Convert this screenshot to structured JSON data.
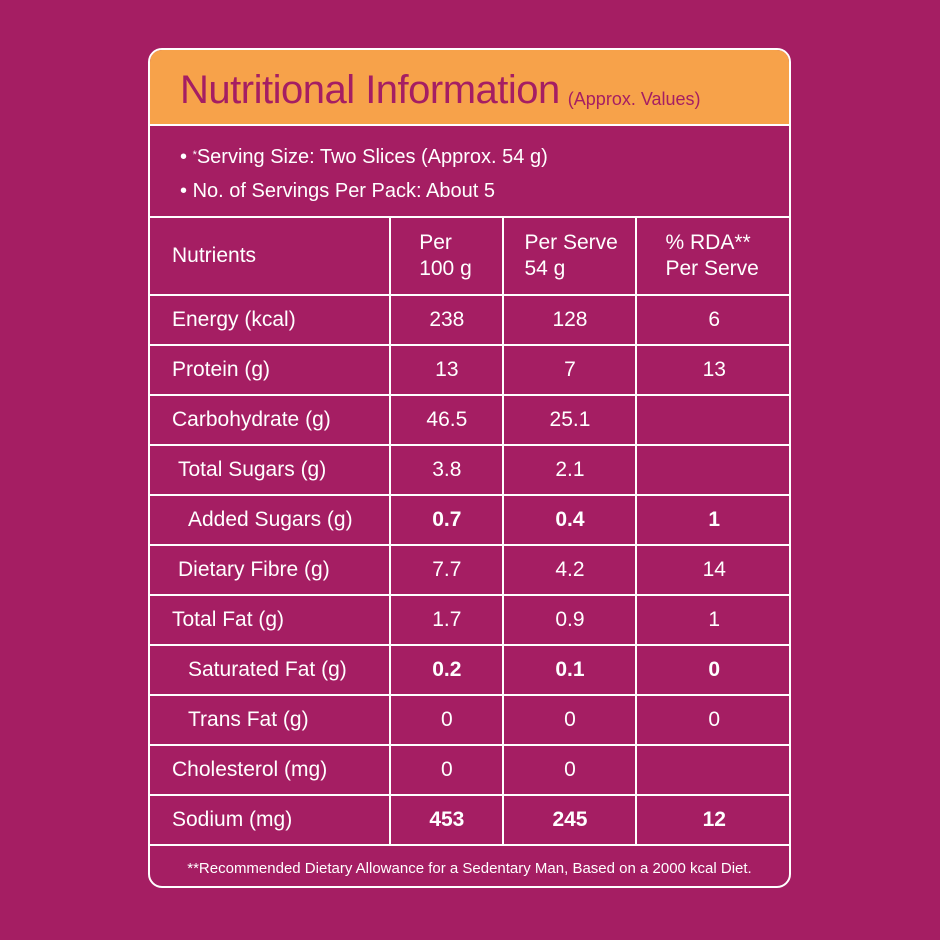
{
  "header": {
    "title": "Nutritional Information",
    "subtitle": "(Approx. Values)"
  },
  "serving": {
    "size_mark": "*",
    "size": "Serving Size: Two Slices (Approx. 54 g)",
    "servings": "No. of Servings Per Pack: About 5"
  },
  "table": {
    "headers": {
      "nutrients": "Nutrients",
      "per100_l1": "Per",
      "per100_l2": "100 g",
      "perserve_l1": "Per Serve",
      "perserve_l2": "54 g",
      "rda_l1": "% RDA**",
      "rda_l2": "Per Serve"
    },
    "rows": [
      {
        "name": "Energy (kcal)",
        "per100": "238",
        "perserve": "128",
        "rda": "6",
        "indent": 0,
        "bold": false
      },
      {
        "name": "Protein (g)",
        "per100": "13",
        "perserve": "7",
        "rda": "13",
        "indent": 0,
        "bold": false
      },
      {
        "name": "Carbohydrate (g)",
        "per100": "46.5",
        "perserve": "25.1",
        "rda": "",
        "indent": 0,
        "bold": false
      },
      {
        "name": "Total Sugars (g)",
        "per100": "3.8",
        "perserve": "2.1",
        "rda": "",
        "indent": 1,
        "bold": false
      },
      {
        "name": "Added Sugars (g)",
        "per100": "0.7",
        "perserve": "0.4",
        "rda": "1",
        "indent": 2,
        "bold": true
      },
      {
        "name": "Dietary Fibre (g)",
        "per100": "7.7",
        "perserve": "4.2",
        "rda": "14",
        "indent": 1,
        "bold": false
      },
      {
        "name": "Total Fat (g)",
        "per100": "1.7",
        "perserve": "0.9",
        "rda": "1",
        "indent": 0,
        "bold": false
      },
      {
        "name": "Saturated Fat (g)",
        "per100": "0.2",
        "perserve": "0.1",
        "rda": "0",
        "indent": 2,
        "bold": true
      },
      {
        "name": "Trans Fat (g)",
        "per100": "0",
        "perserve": "0",
        "rda": "0",
        "indent": 2,
        "bold": false
      },
      {
        "name": "Cholesterol (mg)",
        "per100": "0",
        "perserve": "0",
        "rda": "",
        "indent": 0,
        "bold": false
      },
      {
        "name": "Sodium (mg)",
        "per100": "453",
        "perserve": "245",
        "rda": "12",
        "indent": 0,
        "bold": true
      }
    ]
  },
  "footnote": "**Recommended Dietary Allowance for a Sedentary Man, Based on a 2000 kcal Diet.",
  "colors": {
    "background": "#a51e63",
    "header_band": "#f7a24a",
    "text": "#ffffff"
  }
}
